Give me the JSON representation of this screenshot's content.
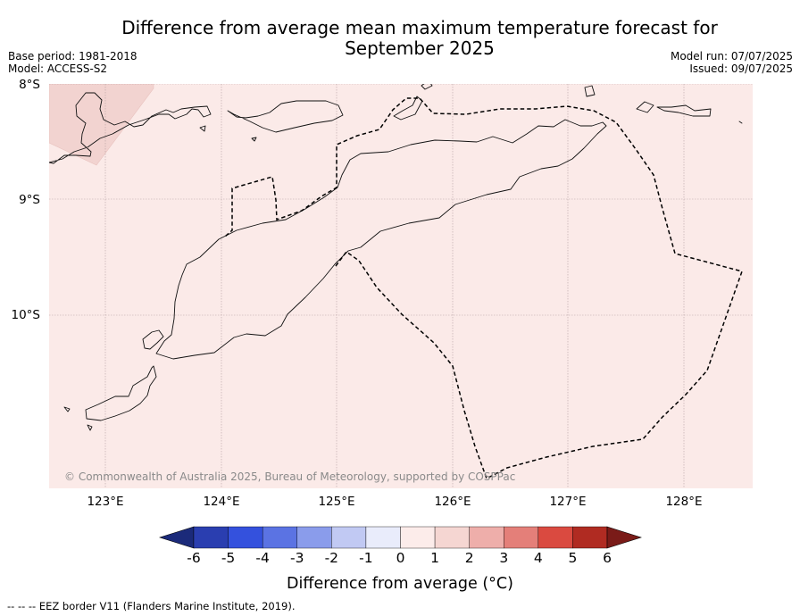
{
  "title_line1": "Difference from average mean maximum temperature forecast for",
  "title_line2": "September 2025",
  "base_period": "Base period: 1981-2018",
  "model": "Model: ACCESS-S2",
  "model_run": "Model run: 07/07/2025",
  "issued": "Issued: 09/07/2025",
  "copyright": "© Commonwealth of Australia 2025, Bureau of Meteorology, supported by COSPPac",
  "lat_labels": [
    "8°S",
    "9°S",
    "10°S"
  ],
  "lon_labels": [
    "123°E",
    "124°E",
    "125°E",
    "126°E",
    "127°E",
    "128°E"
  ],
  "colorbar": {
    "ticks": [
      "-6",
      "-5",
      "-4",
      "-3",
      "-2",
      "-1",
      "0",
      "1",
      "2",
      "3",
      "4",
      "5",
      "6"
    ],
    "colors": [
      "#1b2a7a",
      "#2a3eb0",
      "#3451dd",
      "#5b73e3",
      "#8a9ceb",
      "#c1c9f3",
      "#e9ecfb",
      "#fcecea",
      "#f5d6d2",
      "#eeaeaa",
      "#e47f79",
      "#da4a40",
      "#b02b22",
      "#7a1b18"
    ],
    "label": "Difference from average (°C)"
  },
  "map_fill_color": "#fbeae8",
  "map_patch_color": "#f2d3d0",
  "footer": "--  --  -- EEZ border V11 (Flanders Marine Institute, 2019)."
}
